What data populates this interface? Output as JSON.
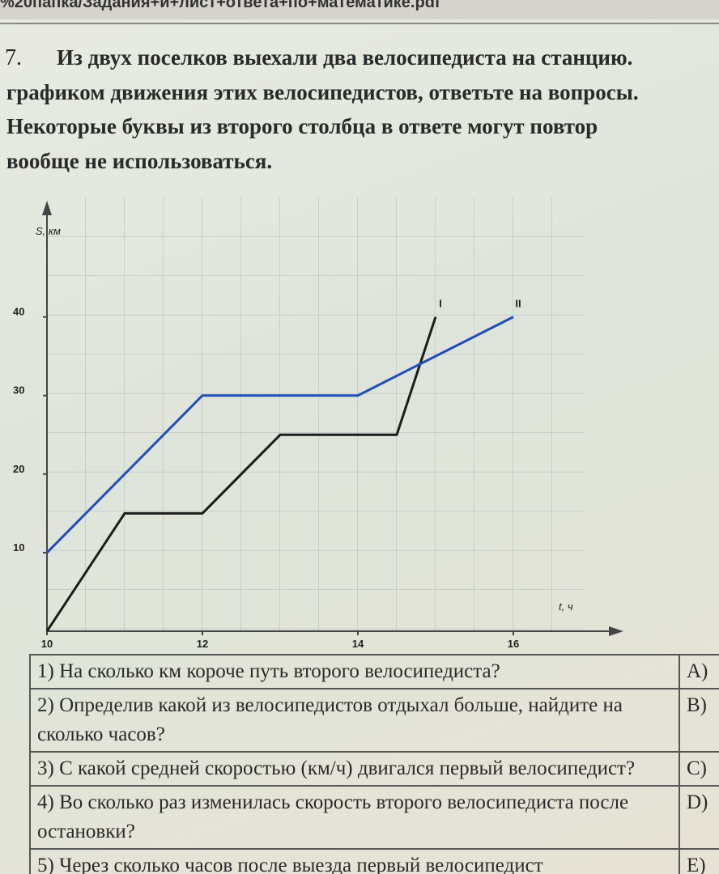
{
  "header": {
    "path": "%20папка/Задания+и+лист+ответа+по+математике.pdf"
  },
  "problem": {
    "number": "7.",
    "lines": [
      "Из двух поселков выехали два велосипедиста на станцию.",
      "графиком движения этих велосипедистов, ответьте на вопросы.",
      "Некоторые буквы из второго столбца в ответе могут повтор",
      "вообще не использоваться."
    ]
  },
  "chart_data": {
    "type": "line",
    "y_label": "S, км",
    "x_label": "t, ч",
    "xlim": [
      10,
      17
    ],
    "ylim": [
      0,
      55
    ],
    "xticks": [
      10,
      12,
      14,
      16
    ],
    "yticks": [
      10,
      20,
      30,
      40
    ],
    "series": [
      {
        "name": "I",
        "color": "#1c1c1c",
        "x": [
          10,
          11,
          12,
          13,
          14.5,
          15
        ],
        "values": [
          0,
          15,
          15,
          25,
          25,
          40
        ]
      },
      {
        "name": "II",
        "color": "#1f4fb8",
        "x": [
          10,
          12,
          14,
          16
        ],
        "values": [
          10,
          30,
          30,
          40
        ]
      }
    ]
  },
  "table": {
    "rows": [
      [
        "1) На сколько км короче путь второго велосипедиста?",
        "A)"
      ],
      [
        "2) Определив какой из велосипедистов отдыхал больше, найдите на сколько часов?",
        "B)"
      ],
      [
        "3) С какой средней скоростью (км/ч) двигался первый велосипедист?",
        "C)"
      ],
      [
        "4) Во сколько раз изменилась скорость второго велосипедиста после остановки?",
        "D)"
      ],
      [
        "5) Через сколько часов после выезда первый велосипедист",
        "E)"
      ]
    ]
  }
}
